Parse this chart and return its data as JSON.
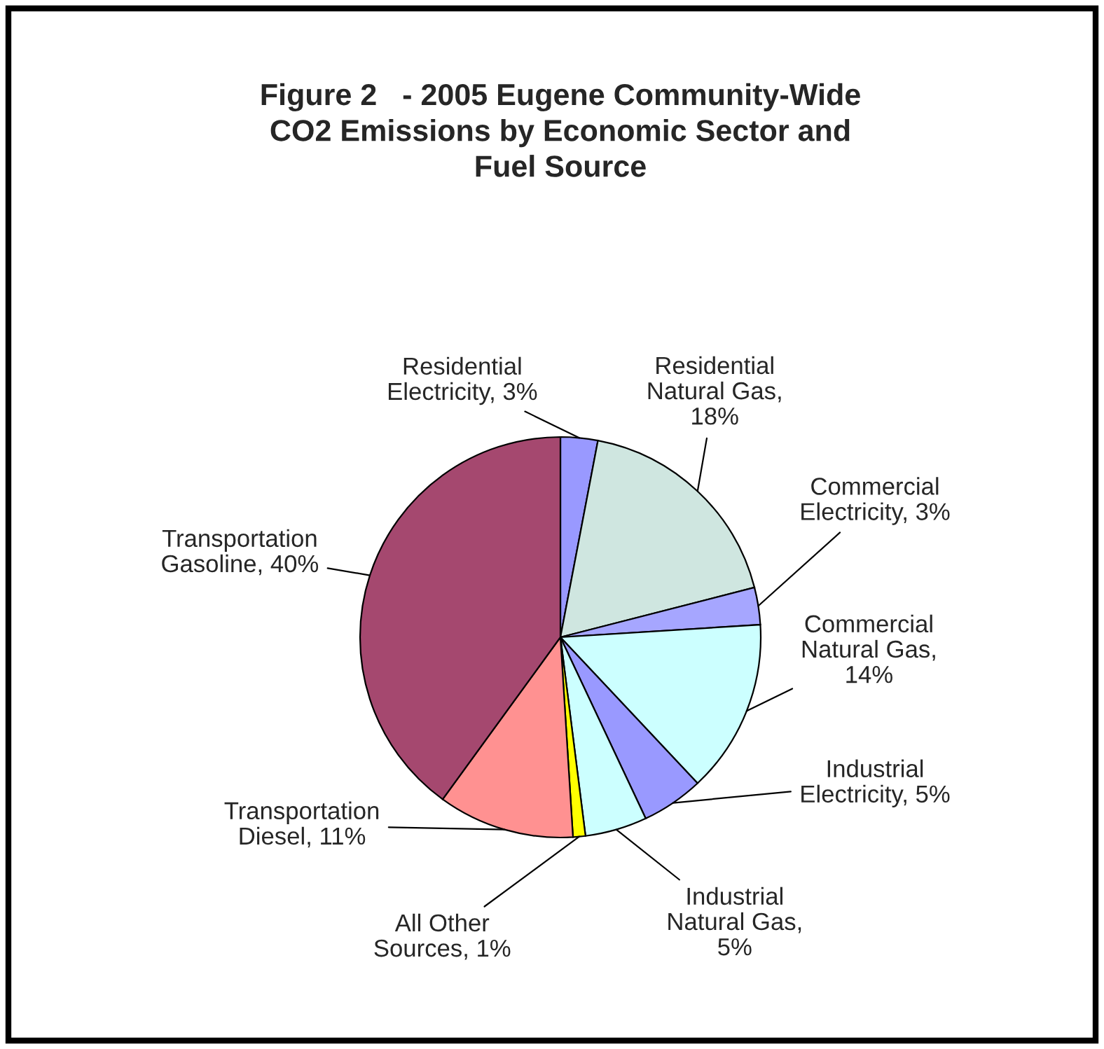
{
  "chart_data": {
    "type": "pie",
    "title": "Figure 2   - 2005 Eugene Community-Wide\nCO2 Emissions by Economic Sector and\nFuel Source",
    "categories": [
      "Residential\nElectricity, 3%",
      "Residential\nNatural Gas,\n18%",
      "Commercial\nElectricity, 3%",
      "Commercial\nNatural Gas,\n14%",
      "Industrial\nElectricity, 5%",
      "Industrial\nNatural Gas,\n5%",
      "All Other\nSources, 1%",
      "Transportation\nDiesel, 11%",
      "Transportation\nGasoline, 40%"
    ],
    "values": [
      3,
      18,
      3,
      14,
      5,
      5,
      1,
      11,
      40
    ],
    "colors": [
      "#9999ff",
      "#cfe6e0",
      "#a6a6ff",
      "#ccffff",
      "#9999ff",
      "#ccffff",
      "#ffff00",
      "#ff9191",
      "#a5486f"
    ],
    "legend": false
  }
}
